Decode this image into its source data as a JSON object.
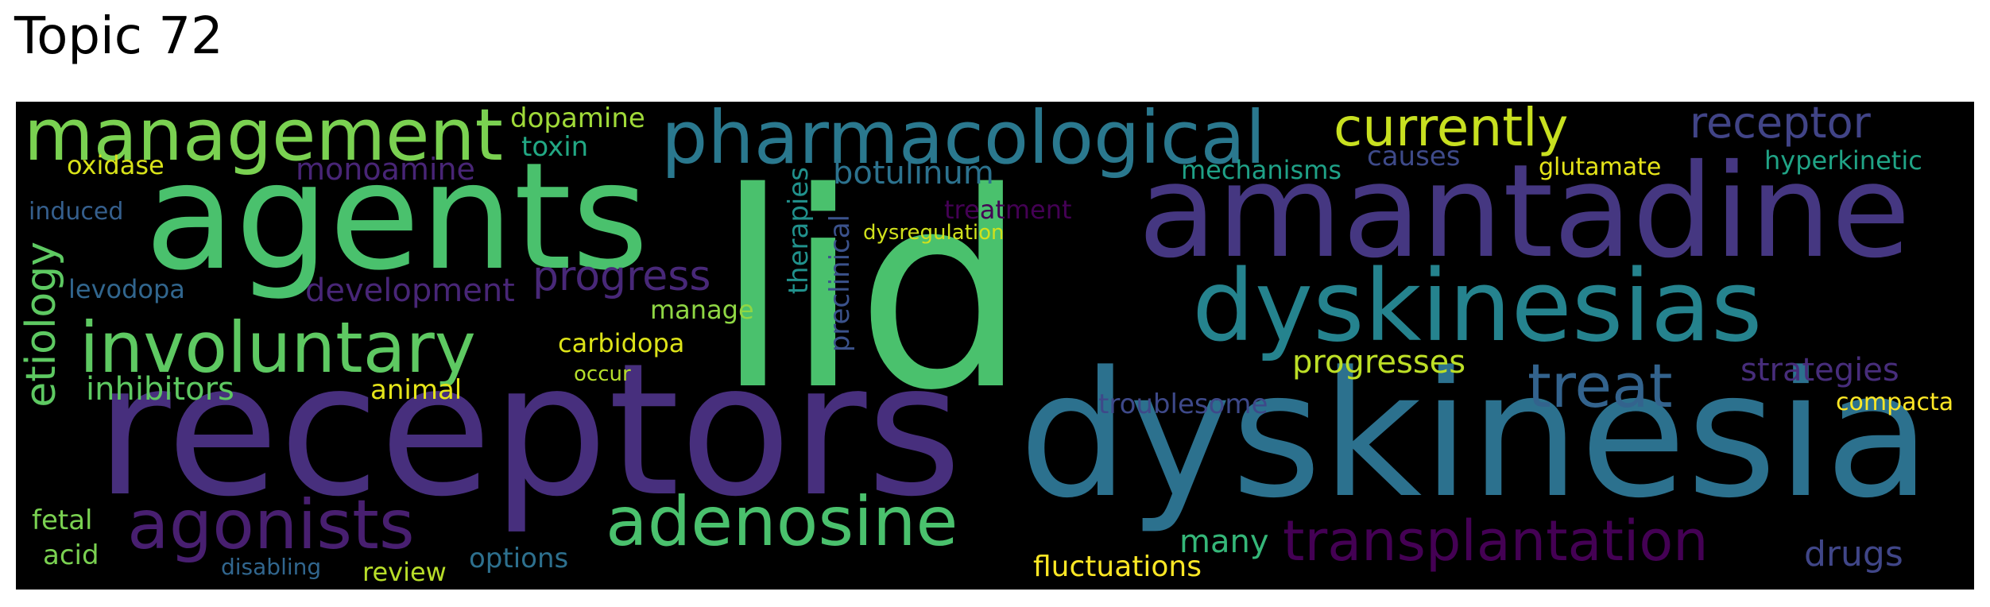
{
  "title": "Topic 72",
  "words": [
    {
      "text": "lid",
      "color": "#4ac16d"
    },
    {
      "text": "receptors",
      "color": "#472f7d"
    },
    {
      "text": "dyskinesia",
      "color": "#2c718e"
    },
    {
      "text": "agents",
      "color": "#4ac16d"
    },
    {
      "text": "amantadine",
      "color": "#453781"
    },
    {
      "text": "dyskinesias",
      "color": "#25838e"
    },
    {
      "text": "pharmacological",
      "color": "#2a788e"
    },
    {
      "text": "management",
      "color": "#7ad151"
    },
    {
      "text": "involuntary",
      "color": "#5ec962"
    },
    {
      "text": "agonists",
      "color": "#481f70"
    },
    {
      "text": "adenosine",
      "color": "#4ac16d"
    },
    {
      "text": "transplantation",
      "color": "#440154"
    },
    {
      "text": "treat",
      "color": "#33638d"
    },
    {
      "text": "currently",
      "color": "#c8e020"
    },
    {
      "text": "receptor",
      "color": "#414487"
    },
    {
      "text": "progress",
      "color": "#482878"
    },
    {
      "text": "etiology",
      "color": "#5ec962"
    },
    {
      "text": "development",
      "color": "#482677"
    },
    {
      "text": "inhibitors",
      "color": "#5ec962"
    },
    {
      "text": "botulinum",
      "color": "#2c728e"
    },
    {
      "text": "progresses",
      "color": "#bddf26"
    },
    {
      "text": "strategies",
      "color": "#472d7b"
    },
    {
      "text": "monoamine",
      "color": "#482576"
    },
    {
      "text": "dopamine",
      "color": "#a0da39"
    },
    {
      "text": "toxin",
      "color": "#22a884"
    },
    {
      "text": "troublesome",
      "color": "#3e4989"
    },
    {
      "text": "therapies",
      "color": "#21918c"
    },
    {
      "text": "preclinical",
      "color": "#3b528b"
    },
    {
      "text": "oxidase",
      "color": "#d8e219"
    },
    {
      "text": "mechanisms",
      "color": "#1fa187"
    },
    {
      "text": "causes",
      "color": "#3e4a89"
    },
    {
      "text": "glutamate",
      "color": "#e5e419"
    },
    {
      "text": "hyperkinetic",
      "color": "#20a486"
    },
    {
      "text": "treatment",
      "color": "#440154"
    },
    {
      "text": "dysregulation",
      "color": "#d0e11c"
    },
    {
      "text": "induced",
      "color": "#355f8d"
    },
    {
      "text": "levodopa",
      "color": "#31668e"
    },
    {
      "text": "manage",
      "color": "#8fd744"
    },
    {
      "text": "carbidopa",
      "color": "#dde318"
    },
    {
      "text": "animal",
      "color": "#e5e419"
    },
    {
      "text": "occur",
      "color": "#b5de2b"
    },
    {
      "text": "compacta",
      "color": "#fde725"
    },
    {
      "text": "many",
      "color": "#35b779"
    },
    {
      "text": "drugs",
      "color": "#404688"
    },
    {
      "text": "fetal",
      "color": "#7ad151"
    },
    {
      "text": "acid",
      "color": "#7ad151"
    },
    {
      "text": "disabling",
      "color": "#31668e"
    },
    {
      "text": "review",
      "color": "#b8de29"
    },
    {
      "text": "options",
      "color": "#2d708e"
    },
    {
      "text": "fluctuations",
      "color": "#fde725"
    }
  ]
}
